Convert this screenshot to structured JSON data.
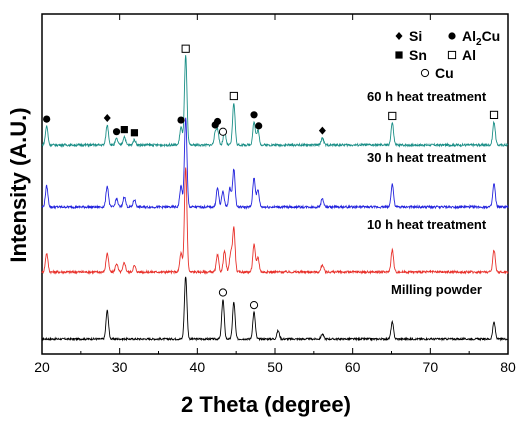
{
  "chart_data": {
    "type": "line",
    "xlabel": "2 Theta (degree)",
    "ylabel": "Intensity (A.U.)",
    "xlim": [
      20,
      80
    ],
    "x_ticks": [
      "20",
      "30",
      "40",
      "50",
      "60",
      "70",
      "80"
    ],
    "y_ticks_labeled": false,
    "legend_position": "top-right",
    "legend": [
      {
        "marker": "diamond",
        "label": "Si"
      },
      {
        "marker": "circle",
        "label": "Al2Cu",
        "label_main": "Al",
        "label_sub": "2",
        "label_tail": "Cu"
      },
      {
        "marker": "square",
        "label": "Sn"
      },
      {
        "marker": "open-square",
        "label": "Al"
      },
      {
        "marker": "open-circle",
        "label": "Cu"
      }
    ],
    "series": [
      {
        "name": "Milling powder",
        "color": "#000000",
        "peaks": [
          [
            28.4,
            34
          ],
          [
            38.5,
            75
          ],
          [
            43.3,
            47
          ],
          [
            44.7,
            44
          ],
          [
            47.3,
            32
          ],
          [
            50.4,
            10
          ],
          [
            56.1,
            6
          ],
          [
            65.1,
            20
          ],
          [
            78.2,
            20
          ]
        ]
      },
      {
        "name": "10 h heat treatment",
        "color": "#e8302a",
        "peaks": [
          [
            20.6,
            18
          ],
          [
            28.4,
            18
          ],
          [
            29.6,
            8
          ],
          [
            30.6,
            9
          ],
          [
            31.9,
            6
          ],
          [
            37.9,
            18
          ],
          [
            38.5,
            100
          ],
          [
            42.6,
            16
          ],
          [
            43.5,
            20
          ],
          [
            44.3,
            18
          ],
          [
            44.7,
            42
          ],
          [
            47.3,
            26
          ],
          [
            47.8,
            14
          ],
          [
            56.1,
            7
          ],
          [
            65.1,
            21
          ],
          [
            78.2,
            21
          ]
        ]
      },
      {
        "name": "30 h heat treatment",
        "color": "#2222dd",
        "peaks": [
          [
            20.6,
            20
          ],
          [
            28.4,
            20
          ],
          [
            29.6,
            8
          ],
          [
            30.6,
            10
          ],
          [
            31.9,
            7
          ],
          [
            37.9,
            20
          ],
          [
            38.5,
            85
          ],
          [
            42.6,
            18
          ],
          [
            43.3,
            15
          ],
          [
            44.2,
            18
          ],
          [
            44.7,
            36
          ],
          [
            47.3,
            28
          ],
          [
            47.8,
            16
          ],
          [
            56.1,
            8
          ],
          [
            65.1,
            22
          ],
          [
            78.2,
            22
          ]
        ]
      },
      {
        "name": "60 h heat treatment",
        "color": "#1b8f87",
        "peaks": [
          [
            20.6,
            18
          ],
          [
            28.4,
            19
          ],
          [
            29.6,
            6
          ],
          [
            30.6,
            8
          ],
          [
            31.9,
            5
          ],
          [
            37.9,
            17
          ],
          [
            38.5,
            85
          ],
          [
            42.3,
            10
          ],
          [
            42.6,
            14
          ],
          [
            43.5,
            13
          ],
          [
            44.7,
            40
          ],
          [
            47.3,
            22
          ],
          [
            47.8,
            14
          ],
          [
            56.1,
            7
          ],
          [
            65.1,
            21
          ],
          [
            78.2,
            22
          ]
        ]
      }
    ],
    "annotations": [
      {
        "series": "60 h heat treatment",
        "x": 20.6,
        "marker": "circle"
      },
      {
        "series": "60 h heat treatment",
        "x": 28.4,
        "marker": "diamond"
      },
      {
        "series": "60 h heat treatment",
        "x": 29.6,
        "marker": "circle"
      },
      {
        "series": "60 h heat treatment",
        "x": 30.6,
        "marker": "square"
      },
      {
        "series": "60 h heat treatment",
        "x": 31.9,
        "marker": "square"
      },
      {
        "series": "60 h heat treatment",
        "x": 37.9,
        "marker": "circle"
      },
      {
        "series": "60 h heat treatment",
        "x": 38.5,
        "marker": "open-square"
      },
      {
        "series": "60 h heat treatment",
        "x": 42.3,
        "marker": "circle"
      },
      {
        "series": "60 h heat treatment",
        "x": 42.6,
        "marker": "circle"
      },
      {
        "series": "60 h heat treatment",
        "x": 43.3,
        "marker": "open-circle"
      },
      {
        "series": "60 h heat treatment",
        "x": 44.7,
        "marker": "open-square"
      },
      {
        "series": "60 h heat treatment",
        "x": 47.3,
        "marker": "circle"
      },
      {
        "series": "60 h heat treatment",
        "x": 47.9,
        "marker": "circle"
      },
      {
        "series": "60 h heat treatment",
        "x": 56.1,
        "marker": "diamond"
      },
      {
        "series": "60 h heat treatment",
        "x": 65.1,
        "marker": "open-square"
      },
      {
        "series": "60 h heat treatment",
        "x": 78.2,
        "marker": "open-square"
      },
      {
        "series": "Milling powder",
        "x": 43.3,
        "marker": "open-circle"
      },
      {
        "series": "Milling powder",
        "x": 47.3,
        "marker": "open-circle"
      }
    ]
  }
}
